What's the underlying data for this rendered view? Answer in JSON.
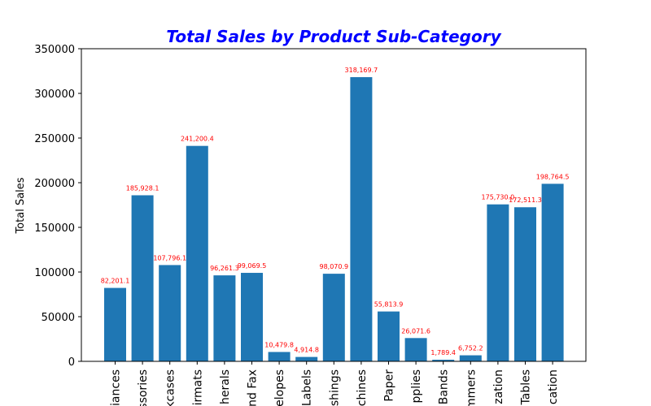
{
  "chart_data": {
    "type": "bar",
    "title": "Total Sales by Product Sub-Category",
    "xlabel": "",
    "ylabel": "Total Sales",
    "ylim": [
      0,
      350000
    ],
    "yticks": [
      0,
      50000,
      100000,
      150000,
      200000,
      250000,
      300000,
      350000
    ],
    "grid": false,
    "categories": [
      "iances",
      "ssories",
      "kcases",
      "irmats",
      "herals",
      "nd Fax",
      "elopes",
      "Labels",
      "shings",
      "chines",
      "Paper",
      "pplies",
      "Bands",
      "mmers",
      "zation",
      "Tables",
      "cation"
    ],
    "values": [
      82201.1,
      185928.1,
      107796.1,
      241200.4,
      96261.3,
      99069.5,
      10479.8,
      4914.8,
      98070.9,
      318169.7,
      55813.9,
      26071.6,
      1789.4,
      6752.2,
      175730.0,
      172511.3,
      198764.5
    ],
    "data_labels": [
      "82,201.1",
      "185,928.1",
      "107,796.1",
      "241,200.4",
      "96,261.3",
      "99,069.5",
      "10,479.8",
      "4,914.8",
      "98,070.9",
      "318,169.7",
      "55,813.9",
      "26,071.6",
      "1,789.4",
      "6,752.2",
      "175,730.0",
      "172,511.3",
      "198,764.5"
    ],
    "colors": {
      "bar": "#1f77b4",
      "title": "#0000ff",
      "data_label": "#ff0000",
      "axis": "#000000"
    }
  }
}
